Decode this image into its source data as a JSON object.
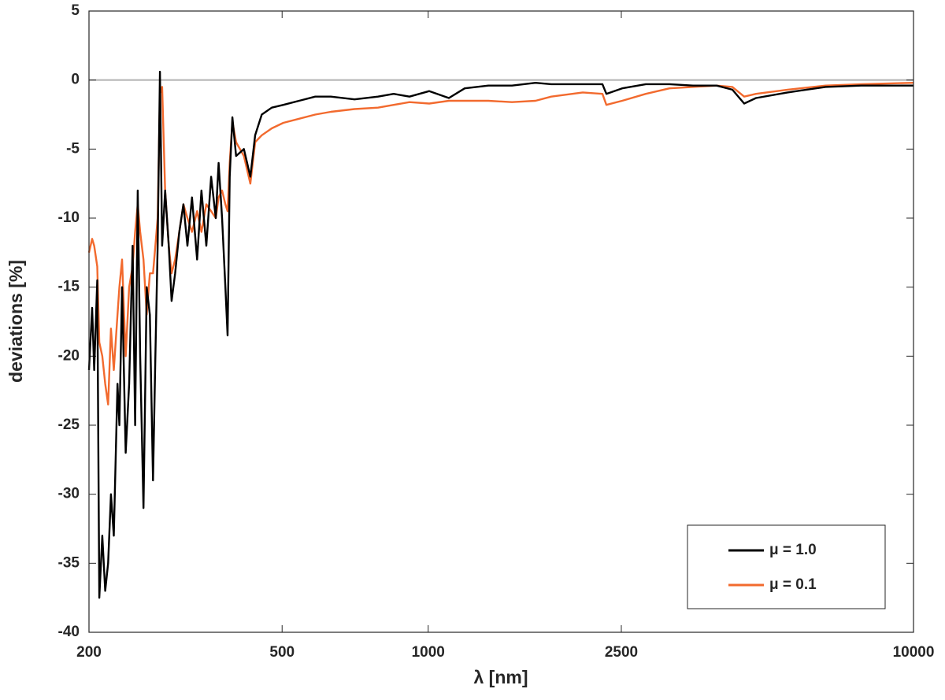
{
  "chart_data": {
    "type": "line",
    "x_label": "λ [nm]",
    "y_label": "deviations [%]",
    "xscale": "log",
    "grid": false,
    "xlim": [
      200,
      10000
    ],
    "ylim": [
      -40,
      5
    ],
    "xticks": [
      200,
      500,
      1000,
      2500,
      10000
    ],
    "yticks": [
      -40,
      -35,
      -30,
      -25,
      -20,
      -15,
      -10,
      -5,
      0,
      5
    ],
    "reference_line": 0,
    "legend": "lower right",
    "x": [
      200,
      203,
      205,
      208,
      210,
      213,
      216,
      219,
      222,
      225,
      229,
      231,
      234,
      238,
      242,
      246,
      249,
      252,
      255,
      259,
      263,
      267,
      271,
      274,
      277,
      280,
      283,
      287,
      292,
      296,
      301,
      307,
      313,
      319,
      326,
      334,
      341,
      349,
      357,
      365,
      370,
      376,
      382,
      386,
      390,
      395,
      402,
      417,
      430,
      440,
      454,
      476,
      503,
      542,
      585,
      630,
      705,
      788,
      849,
      915,
      1005,
      1103,
      1189,
      1330,
      1488,
      1664,
      1793,
      2082,
      2286,
      2329,
      2510,
      2808,
      3141,
      3513,
      3930,
      4235,
      4479,
      4737,
      5503,
      6591,
      7796,
      10000
    ],
    "series": [
      {
        "name": "μ = 1.0",
        "color": "#000000",
        "values": [
          -21,
          -16.5,
          -21,
          -14.5,
          -37.5,
          -33,
          -37,
          -35,
          -30,
          -33,
          -22,
          -25,
          -15,
          -27,
          -22,
          -12,
          -25,
          -8,
          -20,
          -31,
          -15,
          -17,
          -29,
          -20,
          -12,
          0.6,
          -12,
          -8,
          -12,
          -16,
          -14,
          -11,
          -9,
          -12,
          -8.5,
          -13,
          -8,
          -12,
          -7,
          -10,
          -6,
          -10,
          -15,
          -18.5,
          -7,
          -2.7,
          -5.5,
          -5,
          -7,
          -4,
          -2.5,
          -2,
          -1.8,
          -1.5,
          -1.2,
          -1.2,
          -1.4,
          -1.2,
          -1,
          -1.2,
          -0.8,
          -1.3,
          -0.6,
          -0.4,
          -0.4,
          -0.2,
          -0.3,
          -0.3,
          -0.3,
          -1,
          -0.6,
          -0.3,
          -0.3,
          -0.4,
          -0.4,
          -0.7,
          -1.7,
          -1.3,
          -0.9,
          -0.5,
          -0.4,
          -0.4
        ]
      },
      {
        "name": "μ = 0.1",
        "color": "#f26a2e",
        "values": [
          -12.5,
          -11.5,
          -12,
          -13.5,
          -19,
          -20,
          -22,
          -23.5,
          -18,
          -21,
          -17,
          -15,
          -13,
          -20,
          -15,
          -13.5,
          -11,
          -9,
          -11,
          -13,
          -17,
          -14,
          -14,
          -12,
          -10,
          -1,
          -0.5,
          -8,
          -12,
          -14,
          -13,
          -11,
          -9,
          -10,
          -11,
          -9.5,
          -11,
          -9,
          -9.5,
          -10,
          -8.5,
          -8,
          -9,
          -9.5,
          -6,
          -3,
          -4.5,
          -5.5,
          -7.5,
          -4.5,
          -4,
          -3.5,
          -3.1,
          -2.8,
          -2.5,
          -2.3,
          -2.1,
          -2,
          -1.8,
          -1.6,
          -1.7,
          -1.5,
          -1.5,
          -1.5,
          -1.6,
          -1.5,
          -1.2,
          -0.9,
          -1,
          -1.8,
          -1.5,
          -1,
          -0.6,
          -0.5,
          -0.4,
          -0.5,
          -1.2,
          -1,
          -0.7,
          -0.4,
          -0.3,
          -0.2
        ]
      }
    ]
  }
}
